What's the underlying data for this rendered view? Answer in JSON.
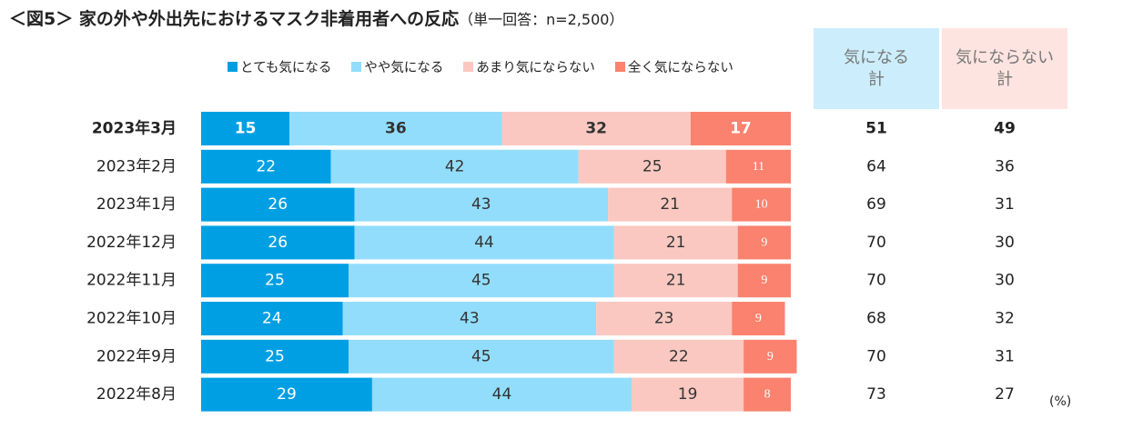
{
  "title": {
    "main": "＜図5＞ 家の外や外出先におけるマスク非着用者への反応",
    "sub": "（単一回答：n=2,500）"
  },
  "colors": {
    "series": [
      "#009FE3",
      "#92DDFB",
      "#FAC8C0",
      "#FA826E"
    ],
    "label_on_dark": "#ffffff",
    "label_on_light": "#333333",
    "sum_header_blue": "#CCEEFC",
    "sum_header_pink": "#FDE4E0"
  },
  "sum_headers": [
    {
      "line1": "気になる",
      "line2": "計"
    },
    {
      "line1": "気にならない",
      "line2": "計"
    }
  ],
  "unit_label": "(%)",
  "chart_data": {
    "type": "bar",
    "orientation": "horizontal",
    "stacked": true,
    "title": "＜図5＞ 家の外や外出先におけるマスク非着用者への反応",
    "categories": [
      "2023年3月",
      "2023年2月",
      "2023年1月",
      "2022年12月",
      "2022年11月",
      "2022年10月",
      "2022年9月",
      "2022年8月"
    ],
    "highlight_category": "2023年3月",
    "series": [
      {
        "name": "とても気になる",
        "values": [
          15,
          22,
          26,
          26,
          25,
          24,
          25,
          29
        ]
      },
      {
        "name": "やや気になる",
        "values": [
          36,
          42,
          43,
          44,
          45,
          43,
          45,
          44
        ]
      },
      {
        "name": "あまり気にならない",
        "values": [
          32,
          25,
          21,
          21,
          21,
          23,
          22,
          19
        ]
      },
      {
        "name": "全く気にならない",
        "values": [
          17,
          11,
          10,
          9,
          9,
          9,
          9,
          8
        ]
      }
    ],
    "totals": {
      "気になる計": [
        51,
        64,
        69,
        70,
        70,
        68,
        70,
        73
      ],
      "気にならない計": [
        49,
        36,
        31,
        30,
        30,
        32,
        31,
        27
      ]
    },
    "xlim": [
      0,
      100
    ],
    "unit": "%",
    "legend_position": "top"
  }
}
